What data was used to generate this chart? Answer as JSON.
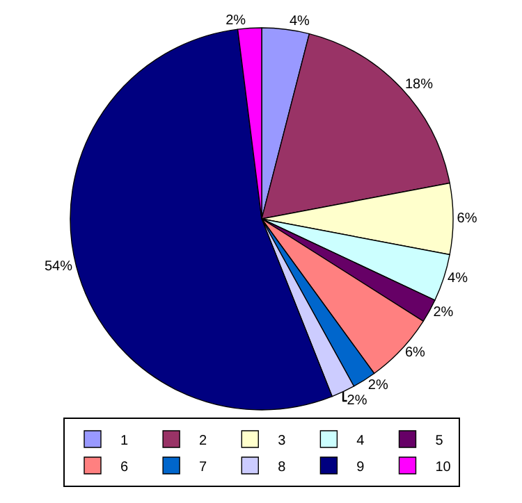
{
  "chart_data": {
    "type": "pie",
    "categories": [
      "1",
      "2",
      "3",
      "4",
      "5",
      "6",
      "7",
      "8",
      "9",
      "10"
    ],
    "values": [
      4,
      18,
      6,
      4,
      2,
      6,
      2,
      2,
      54,
      2
    ],
    "value_labels": [
      "4%",
      "18%",
      "6%",
      "4%",
      "2%",
      "6%",
      "2%",
      "2%",
      "54%",
      "2%"
    ],
    "colors": [
      "#9999ff",
      "#993366",
      "#ffffcc",
      "#ccffff",
      "#660066",
      "#ff8080",
      "#0066cc",
      "#ccccff",
      "#000080",
      "#ff00ff"
    ],
    "legend": "bottom"
  }
}
